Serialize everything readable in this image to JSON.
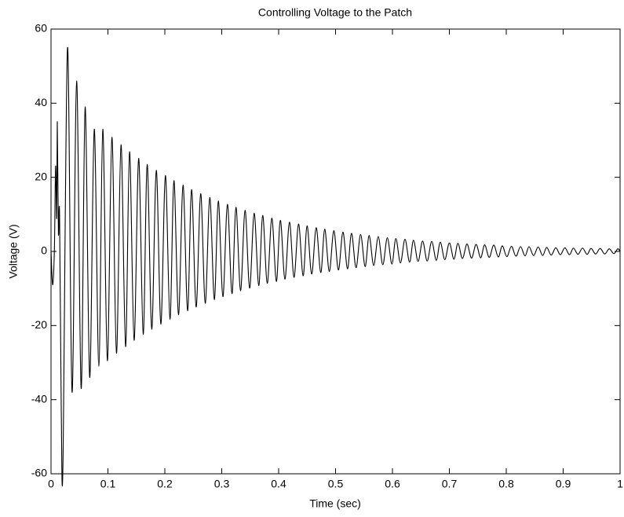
{
  "chart_data": {
    "type": "line",
    "title": "Controlling Voltage to the Patch",
    "xlabel": "Time (sec)",
    "ylabel": "Voltage (V)",
    "xlim": [
      0,
      1
    ],
    "xticks": [
      0,
      0.1,
      0.2,
      0.3,
      0.4,
      0.5,
      0.6,
      0.7,
      0.8,
      0.9,
      1
    ],
    "ylim": [
      -60,
      60
    ],
    "yticks": [
      -60,
      -40,
      -20,
      0,
      20,
      40,
      60
    ],
    "grid": false,
    "x": [
      0,
      0.003,
      0.006,
      0.008,
      0.01,
      0.011,
      0.013,
      0.015,
      0.018,
      0.021,
      0.029,
      0.037,
      0.045,
      0.053,
      0.06,
      0.068,
      0.076,
      0.084,
      0.091,
      0.099,
      0.107,
      0.115,
      0.123,
      0.131,
      0.138,
      0.146,
      0.154,
      0.162,
      0.169,
      0.177,
      0.185,
      0.193,
      0.201,
      0.209,
      0.216,
      0.224,
      0.232,
      0.24,
      0.247,
      0.255,
      0.263,
      0.271,
      0.279,
      0.287,
      0.294,
      0.302,
      0.31,
      0.318,
      0.325,
      0.333,
      0.341,
      0.349,
      0.357,
      0.365,
      0.372,
      0.38,
      0.388,
      0.396,
      0.403,
      0.411,
      0.419,
      0.427,
      0.435,
      0.443,
      0.45,
      0.458,
      0.466,
      0.474,
      0.481,
      0.489,
      0.497,
      0.505,
      0.513,
      0.521,
      0.528,
      0.536,
      0.544,
      0.552,
      0.559,
      0.567,
      0.575,
      0.583,
      0.591,
      0.599,
      0.606,
      0.614,
      0.622,
      0.63,
      0.637,
      0.645,
      0.653,
      0.661,
      0.669,
      0.677,
      0.684,
      0.692,
      0.7,
      0.708,
      0.715,
      0.723,
      0.731,
      0.739,
      0.747,
      0.755,
      0.762,
      0.77,
      0.778,
      0.786,
      0.793,
      0.801,
      0.809,
      0.817,
      0.825,
      0.833,
      0.84,
      0.848,
      0.856,
      0.864,
      0.871,
      0.879,
      0.887,
      0.895,
      0.903,
      0.911,
      0.918,
      0.926,
      0.934,
      0.942,
      0.949,
      0.957,
      0.965,
      0.973,
      0.981,
      0.989,
      0.996,
      1.0
    ],
    "series": [
      {
        "color": "#000000",
        "values": [
          0,
          -9,
          1,
          23,
          9,
          35,
          5,
          10,
          -43,
          -57,
          55,
          -38,
          46,
          -37,
          39,
          -34,
          33,
          -31,
          33,
          -29.5,
          30.8,
          -27.5,
          28.8,
          -25.7,
          26.9,
          -24,
          25.1,
          -22.4,
          23.5,
          -21,
          21.9,
          -19.6,
          20.5,
          -18.3,
          19.1,
          -17.1,
          17.9,
          -16,
          16.7,
          -15,
          15.6,
          -14,
          14.6,
          -13,
          13.6,
          -12.2,
          12.7,
          -11.4,
          11.9,
          -10.6,
          11.1,
          -9.9,
          10.3,
          -9.2,
          9.7,
          -8.6,
          9.0,
          -8.1,
          8.4,
          -7.5,
          7.9,
          -7,
          7.4,
          -6.6,
          6.9,
          -6.1,
          6.4,
          -5.7,
          6.0,
          -5.4,
          5.6,
          -5,
          5.2,
          -4.7,
          4.9,
          -4.4,
          4.6,
          -4.1,
          4.3,
          -3.8,
          4.0,
          -3.6,
          3.7,
          -3.4,
          3.5,
          -3.1,
          3.3,
          -2.9,
          3.0,
          -2.7,
          2.8,
          -2.6,
          2.7,
          -2.4,
          2.5,
          -2.2,
          2.3,
          -2.1,
          2.2,
          -1.9,
          2.0,
          -1.8,
          1.9,
          -1.7,
          1.8,
          -1.6,
          1.7,
          -1.5,
          1.5,
          -1.4,
          1.4,
          -1.3,
          1.3,
          -1.2,
          1.3,
          -1.1,
          1.2,
          -1.1,
          1.1,
          -1.0,
          1.0,
          -0.9,
          1.0,
          -0.9,
          0.9,
          -0.8,
          0.9,
          -0.8,
          0.8,
          -0.7,
          0.8,
          -0.7,
          0.7,
          -0.6,
          0.7,
          0
        ]
      }
    ]
  }
}
